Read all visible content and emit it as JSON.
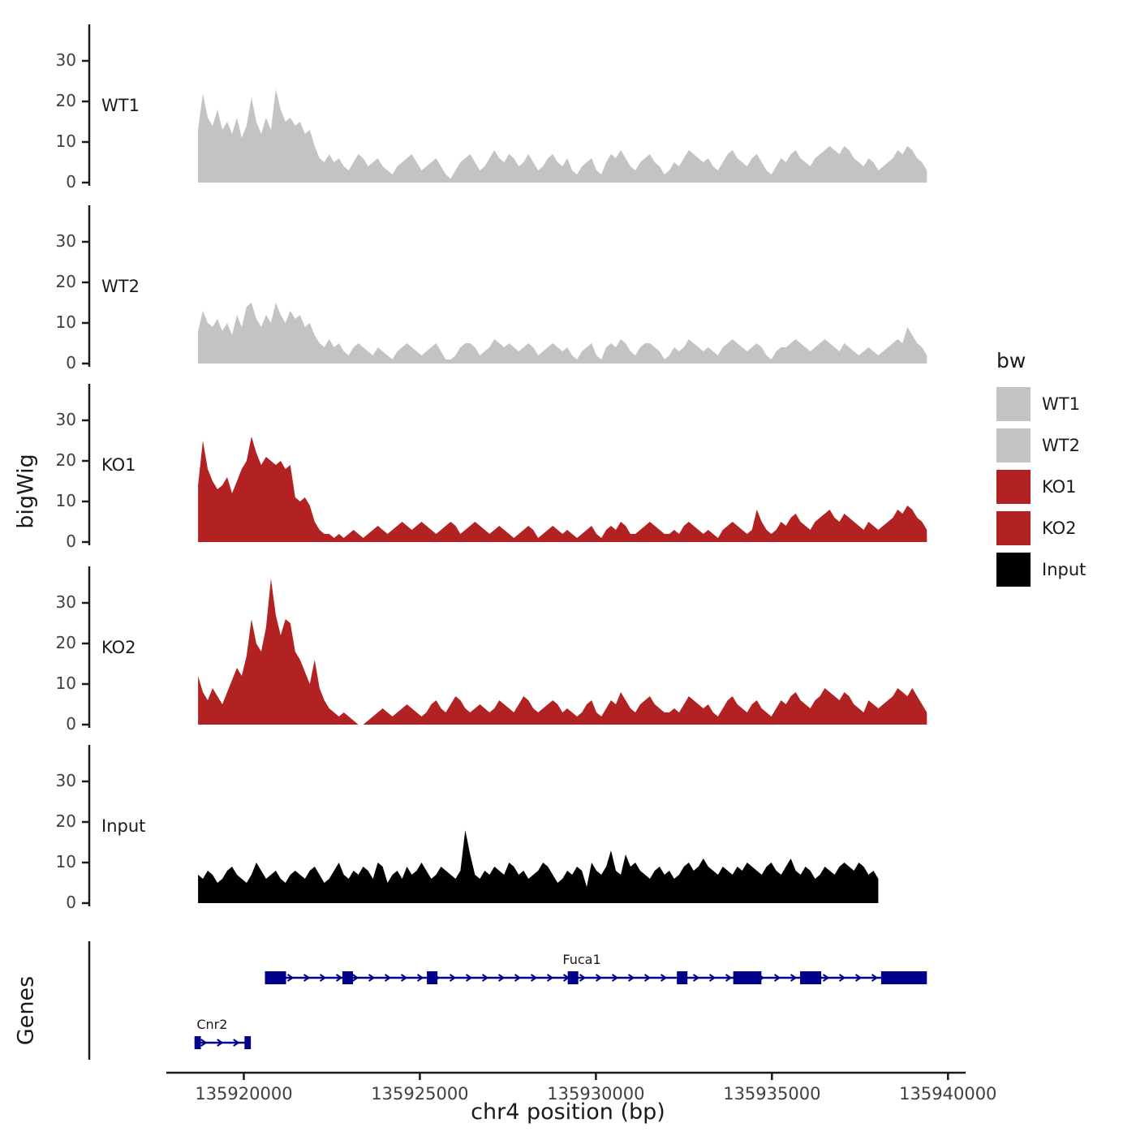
{
  "y_axis": {
    "label": "bigWig",
    "ticks": [
      0,
      10,
      20,
      30
    ]
  },
  "x_axis": {
    "label": "chr4 position (bp)",
    "min": 135917800,
    "max": 135940500,
    "ticks": [
      {
        "bp": 135920000,
        "label": "135920000"
      },
      {
        "bp": 135925000,
        "label": "135925000"
      },
      {
        "bp": 135930000,
        "label": "135930000"
      },
      {
        "bp": 135935000,
        "label": "135935000"
      },
      {
        "bp": 135940000,
        "label": "135940000"
      }
    ]
  },
  "legend": {
    "title": "bw",
    "items": [
      {
        "label": "WT1",
        "color": "#C3C3C3"
      },
      {
        "label": "WT2",
        "color": "#C3C3C3"
      },
      {
        "label": "KO1",
        "color": "#B22222"
      },
      {
        "label": "KO2",
        "color": "#B22222"
      },
      {
        "label": "Input",
        "color": "#000000"
      }
    ]
  },
  "genes_panel": {
    "label": "Genes",
    "gene_color": "#00008B",
    "genes": [
      {
        "name": "Fuca1",
        "strand": "+",
        "start": 135920600,
        "end": 135939400,
        "row": 0,
        "label_bp": 135929600,
        "exons": [
          [
            135920600,
            135921200
          ],
          [
            135922800,
            135923100
          ],
          [
            135925200,
            135925500
          ],
          [
            135929200,
            135929500
          ],
          [
            135932300,
            135932600
          ],
          [
            135933900,
            135934700
          ],
          [
            135935800,
            135936400
          ],
          [
            135938100,
            135939400
          ]
        ]
      },
      {
        "name": "Cnr2",
        "strand": "+",
        "start": 135918600,
        "end": 135920200,
        "row": 1,
        "label_bp": 135919100,
        "exons": [
          [
            135918600,
            135918780
          ],
          [
            135920020,
            135920200
          ]
        ]
      }
    ]
  },
  "chart_data": {
    "type": "area",
    "title": "",
    "xlabel": "chr4 position (bp)",
    "ylabel": "bigWig",
    "ylim": [
      0,
      38
    ],
    "x_range": [
      135918700,
      135939400
    ],
    "tracks": [
      {
        "name": "WT1",
        "color": "#C3C3C3",
        "x_start": 135918700,
        "x_step": 138,
        "values": [
          13,
          22,
          16,
          14,
          18,
          13,
          15,
          12,
          16,
          11,
          14,
          21,
          15,
          12,
          16,
          13,
          23,
          18,
          15,
          16,
          14,
          15,
          12,
          13,
          9,
          6,
          5,
          7,
          5,
          6,
          4,
          3,
          5,
          7,
          6,
          4,
          5,
          6,
          4,
          3,
          2,
          4,
          5,
          6,
          7,
          5,
          3,
          4,
          5,
          6,
          4,
          2,
          1,
          3,
          5,
          6,
          7,
          5,
          3,
          4,
          6,
          8,
          6,
          5,
          7,
          6,
          4,
          5,
          7,
          5,
          3,
          4,
          6,
          7,
          5,
          4,
          6,
          3,
          2,
          4,
          5,
          6,
          3,
          2,
          5,
          7,
          6,
          8,
          6,
          4,
          3,
          5,
          6,
          7,
          5,
          4,
          2,
          3,
          5,
          4,
          6,
          8,
          7,
          6,
          5,
          6,
          4,
          3,
          5,
          7,
          8,
          6,
          5,
          4,
          6,
          7,
          5,
          3,
          2,
          4,
          6,
          5,
          7,
          8,
          6,
          5,
          4,
          6,
          7,
          8,
          9,
          8,
          7,
          9,
          8,
          6,
          5,
          4,
          6,
          5,
          3,
          4,
          5,
          6,
          8,
          7,
          9,
          8,
          6,
          5,
          3
        ]
      },
      {
        "name": "WT2",
        "color": "#C3C3C3",
        "x_start": 135918700,
        "x_step": 138,
        "values": [
          8,
          13,
          10,
          9,
          11,
          8,
          10,
          7,
          12,
          9,
          14,
          15,
          11,
          9,
          12,
          10,
          15,
          12,
          10,
          13,
          11,
          12,
          9,
          10,
          7,
          5,
          4,
          6,
          4,
          5,
          3,
          2,
          4,
          5,
          4,
          3,
          2,
          4,
          3,
          2,
          1,
          3,
          4,
          5,
          4,
          3,
          2,
          3,
          4,
          5,
          3,
          1,
          1,
          2,
          4,
          5,
          5,
          4,
          2,
          3,
          4,
          6,
          5,
          4,
          5,
          4,
          3,
          4,
          5,
          4,
          2,
          3,
          4,
          5,
          4,
          3,
          4,
          2,
          1,
          3,
          4,
          5,
          2,
          1,
          4,
          5,
          4,
          6,
          5,
          3,
          2,
          4,
          5,
          5,
          4,
          3,
          1,
          2,
          4,
          3,
          4,
          6,
          5,
          4,
          3,
          4,
          3,
          2,
          4,
          5,
          6,
          5,
          4,
          3,
          4,
          5,
          4,
          2,
          1,
          3,
          4,
          4,
          5,
          6,
          5,
          4,
          3,
          4,
          5,
          6,
          5,
          4,
          3,
          5,
          4,
          3,
          2,
          3,
          4,
          3,
          2,
          3,
          4,
          5,
          6,
          5,
          9,
          7,
          5,
          4,
          2
        ]
      },
      {
        "name": "KO1",
        "color": "#B22222",
        "x_start": 135918700,
        "x_step": 138,
        "values": [
          14,
          25,
          18,
          15,
          13,
          14,
          16,
          12,
          15,
          18,
          20,
          26,
          22,
          19,
          21,
          20,
          19,
          20,
          18,
          19,
          11,
          10,
          11,
          9,
          5,
          3,
          2,
          2,
          1,
          2,
          1,
          2,
          3,
          2,
          1,
          2,
          3,
          4,
          3,
          2,
          3,
          4,
          5,
          4,
          3,
          4,
          5,
          4,
          3,
          2,
          3,
          4,
          5,
          4,
          2,
          3,
          4,
          5,
          4,
          3,
          2,
          3,
          4,
          3,
          2,
          1,
          2,
          3,
          4,
          3,
          1,
          2,
          3,
          4,
          3,
          2,
          3,
          2,
          1,
          2,
          3,
          4,
          2,
          1,
          3,
          4,
          3,
          5,
          4,
          2,
          2,
          3,
          4,
          5,
          4,
          3,
          2,
          2,
          3,
          2,
          4,
          5,
          4,
          3,
          2,
          3,
          2,
          1,
          3,
          4,
          5,
          4,
          3,
          2,
          3,
          8,
          5,
          3,
          2,
          3,
          5,
          4,
          6,
          7,
          5,
          4,
          3,
          5,
          6,
          7,
          8,
          6,
          5,
          7,
          6,
          5,
          4,
          3,
          5,
          4,
          3,
          4,
          5,
          6,
          8,
          7,
          9,
          8,
          6,
          5,
          3
        ]
      },
      {
        "name": "KO2",
        "color": "#B22222",
        "x_start": 135918700,
        "x_step": 138,
        "values": [
          12,
          8,
          6,
          9,
          7,
          5,
          8,
          11,
          14,
          12,
          17,
          26,
          20,
          18,
          24,
          36,
          27,
          22,
          26,
          25,
          18,
          16,
          13,
          10,
          16,
          9,
          6,
          4,
          3,
          2,
          3,
          2,
          1,
          0,
          0,
          1,
          2,
          3,
          4,
          3,
          2,
          3,
          4,
          5,
          4,
          3,
          2,
          3,
          5,
          6,
          4,
          3,
          5,
          7,
          6,
          4,
          3,
          4,
          5,
          4,
          3,
          4,
          6,
          5,
          4,
          3,
          5,
          7,
          6,
          4,
          3,
          4,
          5,
          6,
          5,
          3,
          4,
          3,
          2,
          3,
          5,
          6,
          3,
          2,
          4,
          6,
          5,
          8,
          6,
          4,
          3,
          5,
          6,
          7,
          5,
          4,
          3,
          3,
          4,
          3,
          5,
          7,
          6,
          5,
          4,
          5,
          3,
          2,
          4,
          6,
          7,
          5,
          4,
          3,
          5,
          6,
          4,
          3,
          2,
          4,
          6,
          5,
          7,
          8,
          6,
          5,
          4,
          6,
          7,
          9,
          8,
          7,
          6,
          8,
          7,
          5,
          4,
          3,
          6,
          5,
          4,
          5,
          6,
          7,
          9,
          8,
          7,
          9,
          7,
          5,
          3
        ]
      },
      {
        "name": "Input",
        "color": "#000000",
        "x_start": 135918700,
        "x_step": 138,
        "values": [
          7,
          6,
          8,
          7,
          5,
          6,
          8,
          9,
          7,
          6,
          5,
          7,
          10,
          8,
          6,
          7,
          8,
          6,
          5,
          7,
          8,
          7,
          6,
          8,
          9,
          7,
          5,
          6,
          8,
          10,
          7,
          6,
          8,
          7,
          9,
          8,
          6,
          10,
          9,
          5,
          7,
          8,
          6,
          9,
          7,
          8,
          10,
          8,
          6,
          7,
          9,
          8,
          7,
          6,
          8,
          18,
          12,
          7,
          6,
          8,
          7,
          9,
          8,
          7,
          10,
          9,
          7,
          8,
          6,
          7,
          8,
          10,
          9,
          7,
          5,
          6,
          8,
          7,
          9,
          8,
          4,
          10,
          8,
          7,
          9,
          13,
          8,
          7,
          12,
          9,
          10,
          8,
          7,
          6,
          8,
          9,
          7,
          8,
          6,
          7,
          9,
          10,
          8,
          9,
          11,
          9,
          8,
          7,
          9,
          8,
          7,
          9,
          8,
          10,
          9,
          8,
          7,
          9,
          10,
          8,
          7,
          9,
          11,
          8,
          7,
          9,
          8,
          6,
          7,
          9,
          8,
          7,
          9,
          10,
          9,
          8,
          10,
          9,
          7,
          8,
          6
        ]
      }
    ]
  }
}
